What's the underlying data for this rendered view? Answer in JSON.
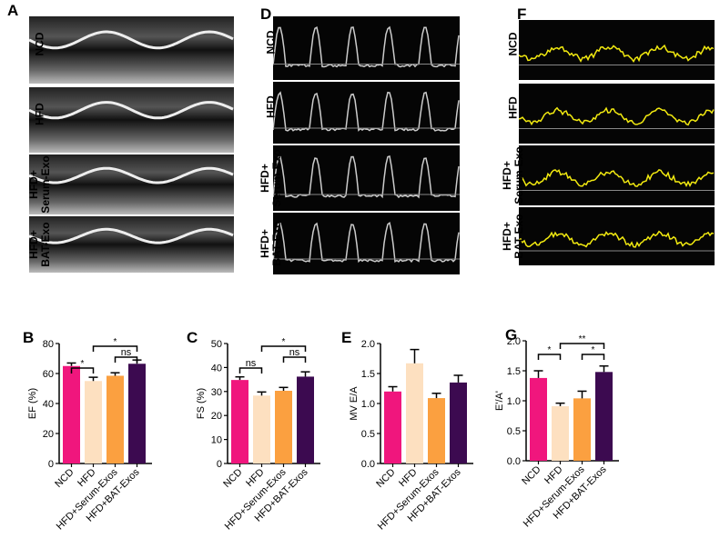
{
  "panels": {
    "A": {
      "label": "A",
      "rows": [
        "NCD",
        "HFD",
        "HFD+\nSerum-Exo",
        "HFD+\nBAT-Exo"
      ]
    },
    "D": {
      "label": "D",
      "rows": [
        "NCD",
        "HFD",
        "HFD+\nSerum-Exo",
        "HFD+\nBAT-Exo"
      ]
    },
    "F": {
      "label": "F",
      "rows": [
        "NCD",
        "HFD",
        "HFD+\nSerum-Exo",
        "HFD+\nBAT-Exo"
      ]
    }
  },
  "colors": {
    "NCD": "#f0167d",
    "HFD": "#fde0c0",
    "HFD+Serum-Exos": "#fba040",
    "HFD+BAT-Exos": "#3c0a50",
    "doppler_tissue": "#f2ea10"
  },
  "chart_data": [
    {
      "panel": "B",
      "type": "bar",
      "ylabel": "EF (%)",
      "categories": [
        "NCD",
        "HFD",
        "HFD+Serum-Exos",
        "HFD+BAT-Exos"
      ],
      "values": [
        65,
        55,
        58.5,
        66.5
      ],
      "errors": [
        2,
        2.5,
        2,
        2.5
      ],
      "ylim": [
        0,
        80
      ],
      "yticks": [
        0,
        20,
        40,
        60,
        80
      ],
      "significance": [
        {
          "from": 0,
          "to": 1,
          "label": "*",
          "level": 1
        },
        {
          "from": 1,
          "to": 3,
          "label": "*",
          "level": 3
        },
        {
          "from": 2,
          "to": 3,
          "label": "ns",
          "level": 2
        }
      ]
    },
    {
      "panel": "C",
      "type": "bar",
      "ylabel": "FS (%)",
      "categories": [
        "NCD",
        "HFD",
        "HFD+Serum-Exos",
        "HFD+BAT-Exos"
      ],
      "values": [
        34.8,
        28.3,
        30.3,
        36.2
      ],
      "errors": [
        1.3,
        1.5,
        1.4,
        2
      ],
      "ylim": [
        0,
        50
      ],
      "yticks": [
        0,
        10,
        20,
        30,
        40,
        50
      ],
      "significance": [
        {
          "from": 0,
          "to": 1,
          "label": "ns",
          "level": 1
        },
        {
          "from": 1,
          "to": 3,
          "label": "*",
          "level": 3
        },
        {
          "from": 2,
          "to": 3,
          "label": "ns",
          "level": 2
        }
      ]
    },
    {
      "panel": "E",
      "type": "bar",
      "ylabel": "MV E/A",
      "categories": [
        "NCD",
        "HFD",
        "HFD+Serum-Exos",
        "HFD+BAT-Exos"
      ],
      "values": [
        1.2,
        1.67,
        1.09,
        1.35
      ],
      "errors": [
        0.08,
        0.23,
        0.08,
        0.12
      ],
      "ylim": [
        0,
        2.0
      ],
      "yticks": [
        "0.0",
        "0.5",
        "1.0",
        "1.5",
        "2.0"
      ],
      "significance": []
    },
    {
      "panel": "G",
      "type": "bar",
      "ylabel": "E'/A'",
      "categories": [
        "NCD",
        "HFD",
        "HFD+Serum-Exos",
        "HFD+BAT-Exos"
      ],
      "values": [
        1.38,
        0.91,
        1.04,
        1.48
      ],
      "errors": [
        0.12,
        0.05,
        0.12,
        0.1
      ],
      "ylim": [
        0,
        2.0
      ],
      "yticks": [
        "0.0",
        "0.5",
        "1.0",
        "1.5",
        "2.0"
      ],
      "significance": [
        {
          "from": 0,
          "to": 1,
          "label": "*",
          "level": 2
        },
        {
          "from": 1,
          "to": 3,
          "label": "**",
          "level": 3
        },
        {
          "from": 2,
          "to": 3,
          "label": "*",
          "level": 2
        }
      ]
    }
  ]
}
